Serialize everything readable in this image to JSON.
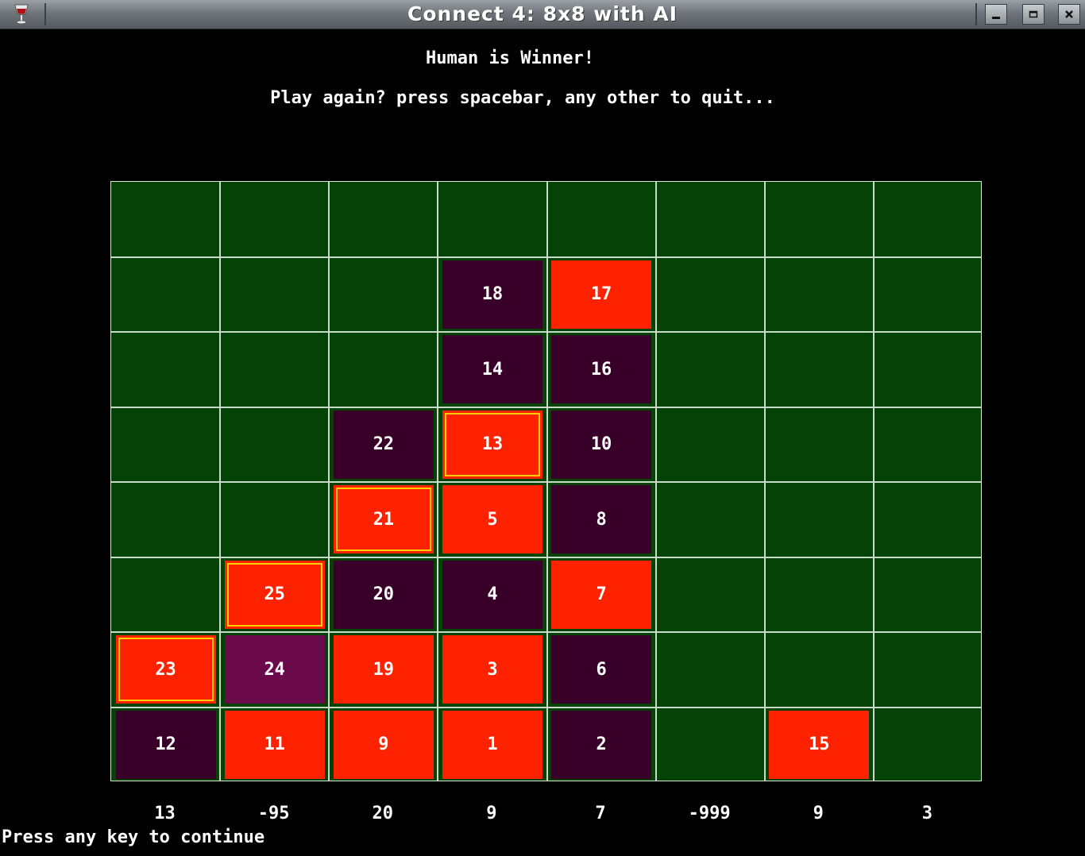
{
  "window": {
    "title": "Connect 4: 8x8 with AI",
    "app_icon": "wine-glass-icon",
    "controls": [
      "minimize-icon",
      "maximize-icon",
      "close-icon"
    ]
  },
  "messages": {
    "winner": "Human is Winner!",
    "play_again": "Play again? press spacebar, any other to quit..."
  },
  "board": {
    "rows": 8,
    "cols": 8,
    "colors": {
      "background": "#054205",
      "grid": "#c8dac8",
      "human": "#ff2200",
      "ai": "#380028",
      "ai_last": "#6a0a4a",
      "win_outline": "#ffd000"
    },
    "pieces": [
      {
        "row": 1,
        "col": 3,
        "move": "18",
        "player": "ai"
      },
      {
        "row": 1,
        "col": 4,
        "move": "17",
        "player": "human"
      },
      {
        "row": 2,
        "col": 3,
        "move": "14",
        "player": "ai"
      },
      {
        "row": 2,
        "col": 4,
        "move": "16",
        "player": "ai"
      },
      {
        "row": 3,
        "col": 2,
        "move": "22",
        "player": "ai"
      },
      {
        "row": 3,
        "col": 3,
        "move": "13",
        "player": "human",
        "win": true
      },
      {
        "row": 3,
        "col": 4,
        "move": "10",
        "player": "ai"
      },
      {
        "row": 4,
        "col": 2,
        "move": "21",
        "player": "human",
        "win": true
      },
      {
        "row": 4,
        "col": 3,
        "move": "5",
        "player": "human"
      },
      {
        "row": 4,
        "col": 4,
        "move": "8",
        "player": "ai"
      },
      {
        "row": 5,
        "col": 1,
        "move": "25",
        "player": "human",
        "win": true
      },
      {
        "row": 5,
        "col": 2,
        "move": "20",
        "player": "ai"
      },
      {
        "row": 5,
        "col": 3,
        "move": "4",
        "player": "ai"
      },
      {
        "row": 5,
        "col": 4,
        "move": "7",
        "player": "human"
      },
      {
        "row": 6,
        "col": 0,
        "move": "23",
        "player": "human",
        "win": true
      },
      {
        "row": 6,
        "col": 1,
        "move": "24",
        "player": "ai-last"
      },
      {
        "row": 6,
        "col": 2,
        "move": "19",
        "player": "human"
      },
      {
        "row": 6,
        "col": 3,
        "move": "3",
        "player": "human"
      },
      {
        "row": 6,
        "col": 4,
        "move": "6",
        "player": "ai"
      },
      {
        "row": 7,
        "col": 0,
        "move": "12",
        "player": "ai"
      },
      {
        "row": 7,
        "col": 1,
        "move": "11",
        "player": "human"
      },
      {
        "row": 7,
        "col": 2,
        "move": "9",
        "player": "human"
      },
      {
        "row": 7,
        "col": 3,
        "move": "1",
        "player": "human"
      },
      {
        "row": 7,
        "col": 4,
        "move": "2",
        "player": "ai"
      },
      {
        "row": 7,
        "col": 6,
        "move": "15",
        "player": "human"
      }
    ]
  },
  "column_scores": [
    "13",
    "-95",
    "20",
    "9",
    "7",
    "-999",
    "9",
    "3"
  ],
  "footer": "Press any key to continue"
}
